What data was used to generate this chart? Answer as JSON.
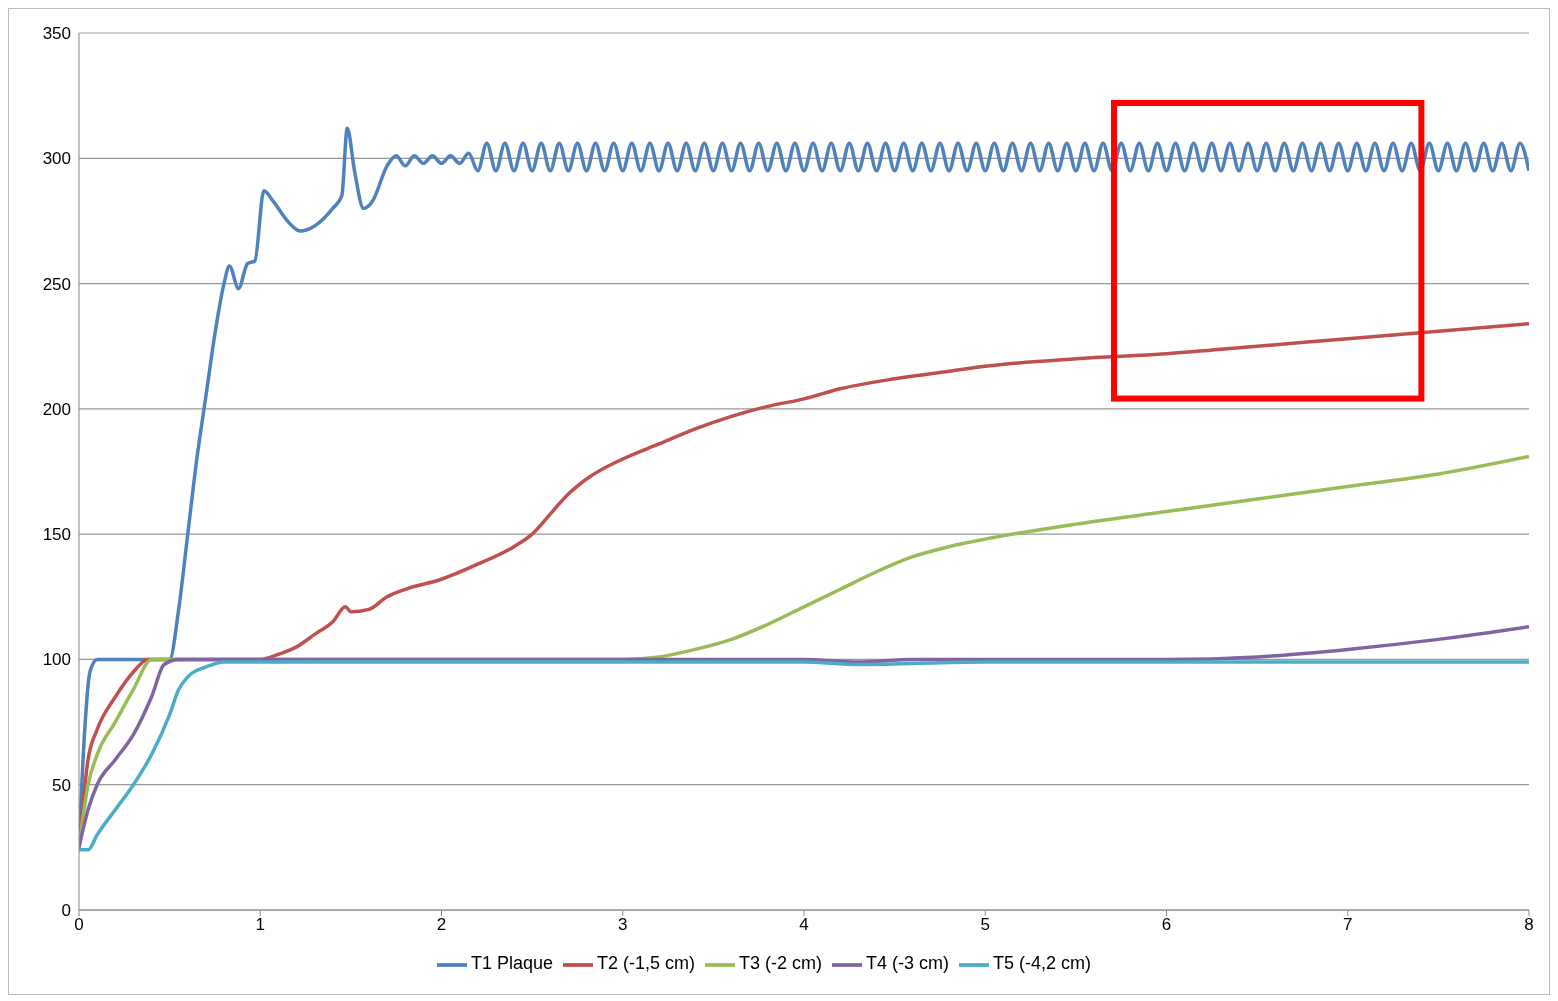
{
  "chart_data": {
    "type": "line",
    "xlim": [
      0,
      8
    ],
    "xticks": [
      0,
      1,
      2,
      3,
      4,
      5,
      6,
      7,
      8
    ],
    "ylim": [
      0,
      350
    ],
    "yticks": [
      0,
      50,
      100,
      150,
      200,
      250,
      300,
      350
    ],
    "grid": "y",
    "legend": "bottom",
    "marker": "none",
    "line_style": "solid",
    "series": [
      {
        "name": "T1 Plaque",
        "color": "#4f81bd",
        "x": [
          0,
          0.03,
          0.06,
          0.1,
          0.3,
          0.5,
          0.55,
          0.6,
          0.65,
          0.7,
          0.75,
          0.8,
          0.83,
          0.88,
          0.93,
          0.97,
          1.02,
          1.07,
          1.15,
          1.22,
          1.3,
          1.4,
          1.45,
          1.48,
          1.52,
          1.57,
          1.62,
          1.7,
          1.75,
          1.8,
          1.85,
          1.9,
          1.95,
          2,
          2.05,
          2.1,
          2.15,
          2.2,
          2.25,
          2.3,
          2.35,
          2.4,
          2.45,
          2.5,
          2.55,
          2.6,
          2.65,
          2.7,
          2.75,
          2.8,
          2.85,
          2.9,
          2.95,
          3,
          3.05,
          3.1,
          3.15,
          3.2,
          3.25,
          3.3,
          3.35,
          3.4,
          3.45,
          3.5,
          3.55,
          3.6,
          3.65,
          3.7,
          3.75,
          3.8,
          3.85,
          3.9,
          3.95,
          4,
          4.05,
          4.1,
          4.15,
          4.2,
          4.25,
          4.3,
          4.35,
          4.4,
          4.45,
          4.5,
          4.55,
          4.6,
          4.65,
          4.7,
          4.75,
          4.8,
          4.85,
          4.9,
          4.95,
          5,
          5.05,
          5.1,
          5.15,
          5.2,
          5.25,
          5.3,
          5.35,
          5.4,
          5.45,
          5.5,
          5.55,
          5.6,
          5.65,
          5.7,
          5.75,
          5.8,
          5.85,
          5.9,
          5.95,
          6,
          6.05,
          6.1,
          6.15,
          6.2,
          6.25,
          6.3,
          6.35,
          6.4,
          6.45,
          6.5,
          6.55,
          6.6,
          6.65,
          6.7,
          6.75,
          6.8,
          6.85,
          6.9,
          6.95,
          7,
          7.05,
          7.1,
          7.15,
          7.2,
          7.25,
          7.3,
          7.35,
          7.4,
          7.45,
          7.5,
          7.55,
          7.6,
          7.65,
          7.7,
          7.75,
          7.8,
          7.85,
          7.9,
          7.95,
          8
        ],
        "values": [
          25,
          70,
          95,
          100,
          100,
          100,
          120,
          150,
          180,
          205,
          230,
          250,
          257,
          248,
          258,
          259,
          287,
          283,
          275,
          271,
          273,
          280,
          285,
          312,
          295,
          280,
          283,
          297,
          301,
          297,
          301,
          298,
          301,
          298,
          301,
          298,
          302,
          295,
          306,
          295,
          306,
          295,
          306,
          295,
          306,
          295,
          306,
          295,
          306,
          295,
          306,
          295,
          306,
          295,
          306,
          295,
          306,
          295,
          306,
          295,
          306,
          295,
          306,
          295,
          306,
          295,
          306,
          295,
          306,
          295,
          306,
          295,
          306,
          295,
          306,
          295,
          306,
          295,
          306,
          295,
          306,
          295,
          306,
          295,
          306,
          295,
          306,
          295,
          306,
          295,
          306,
          295,
          306,
          295,
          306,
          295,
          306,
          295,
          306,
          295,
          306,
          295,
          306,
          295,
          306,
          295,
          306,
          295,
          306,
          295,
          306,
          295,
          306,
          295,
          306,
          295,
          306,
          295,
          306,
          295,
          306,
          295,
          306,
          295,
          306,
          295,
          306,
          295,
          306,
          295,
          306,
          295,
          306,
          295,
          306,
          295,
          306,
          295,
          306,
          295,
          306,
          295,
          306,
          295,
          306,
          295,
          306,
          295,
          306,
          295,
          306,
          295,
          306,
          295
        ]
      },
      {
        "name": "T2 (-1,5 cm)",
        "color": "#c0504d",
        "x": [
          0,
          0.05,
          0.1,
          0.2,
          0.3,
          0.38,
          1,
          1.1,
          1.2,
          1.3,
          1.4,
          1.47,
          1.5,
          1.6,
          1.7,
          1.8,
          2,
          2.2,
          2.4,
          2.5,
          2.6,
          2.7,
          2.8,
          3,
          3.2,
          3.4,
          3.6,
          3.8,
          4,
          4.2,
          4.5,
          4.8,
          5,
          5.5,
          6,
          6.5,
          7,
          7.5,
          8
        ],
        "values": [
          25,
          60,
          72,
          85,
          95,
          100,
          100,
          102,
          105,
          110,
          115,
          121,
          119,
          120,
          125,
          128,
          132,
          138,
          145,
          150,
          158,
          166,
          172,
          180,
          186,
          192,
          197,
          201,
          204,
          208,
          212,
          215,
          217,
          220,
          222,
          225,
          228,
          231,
          234
        ]
      },
      {
        "name": "T3 (-2 cm)",
        "color": "#9bbb59",
        "x": [
          0,
          0.05,
          0.1,
          0.2,
          0.3,
          0.4,
          3,
          3.2,
          3.4,
          3.6,
          3.8,
          4,
          4.2,
          4.4,
          4.6,
          4.8,
          5,
          5.5,
          6,
          6.5,
          7,
          7.5,
          8
        ],
        "values": [
          25,
          50,
          62,
          75,
          88,
          100,
          100,
          101,
          104,
          108,
          114,
          121,
          128,
          135,
          141,
          145,
          148,
          154,
          159,
          164,
          169,
          174,
          181
        ]
      },
      {
        "name": "T4 (-3 cm)",
        "color": "#8064a2",
        "x": [
          0,
          0.05,
          0.1,
          0.2,
          0.3,
          0.4,
          0.47,
          0.55,
          4,
          4.3,
          4.6,
          6,
          6.5,
          7,
          7.5,
          8
        ],
        "values": [
          25,
          40,
          50,
          60,
          70,
          85,
          98,
          100,
          100,
          99,
          100,
          100,
          101,
          104,
          108,
          113
        ]
      },
      {
        "name": "T5 (-4,2 cm)",
        "color": "#4bacc6",
        "x": [
          0,
          0.05,
          0.1,
          0.2,
          0.3,
          0.4,
          0.5,
          0.55,
          0.6,
          0.7,
          0.8,
          1,
          4,
          4.3,
          5,
          8
        ],
        "values": [
          24,
          24,
          30,
          40,
          50,
          62,
          78,
          88,
          93,
          97,
          99,
          99,
          99,
          98,
          99,
          99
        ]
      }
    ]
  }
}
